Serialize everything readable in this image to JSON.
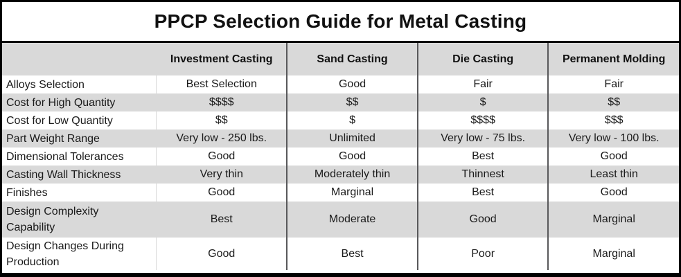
{
  "title": "PPCP Selection Guide for Metal Casting",
  "table": {
    "columns": [
      "",
      "Investment Casting",
      "Sand Casting",
      "Die Casting",
      "Permanent Molding"
    ],
    "rows": [
      {
        "label": "Alloys Selection",
        "values": [
          "Best Selection",
          "Good",
          "Fair",
          "Fair"
        ]
      },
      {
        "label": "Cost for High Quantity",
        "values": [
          "$$$$",
          "$$",
          "$",
          "$$"
        ]
      },
      {
        "label": "Cost for Low Quantity",
        "values": [
          "$$",
          "$",
          "$$$$",
          "$$$"
        ]
      },
      {
        "label": "Part Weight Range",
        "values": [
          "Very low - 250 lbs.",
          "Unlimited",
          "Very low - 75 lbs.",
          "Very low - 100 lbs."
        ]
      },
      {
        "label": "Dimensional Tolerances",
        "values": [
          "Good",
          "Good",
          "Best",
          "Good"
        ]
      },
      {
        "label": "Casting Wall Thickness",
        "values": [
          "Very thin",
          "Moderately thin",
          "Thinnest",
          "Least thin"
        ]
      },
      {
        "label": "Finishes",
        "values": [
          "Good",
          "Marginal",
          "Best",
          "Good"
        ]
      },
      {
        "label": "Design Complexity\nCapability",
        "values": [
          "Best",
          "Moderate",
          "Good",
          "Marginal"
        ]
      },
      {
        "label": "Design Changes During\nProduction",
        "values": [
          "Good",
          "Best",
          "Poor",
          "Marginal"
        ]
      }
    ]
  },
  "colors": {
    "header_bg": "#d9d9d9",
    "alt_row_bg": "#d9d9d9",
    "column_divider": "#58585a",
    "outer_border": "#000000"
  }
}
